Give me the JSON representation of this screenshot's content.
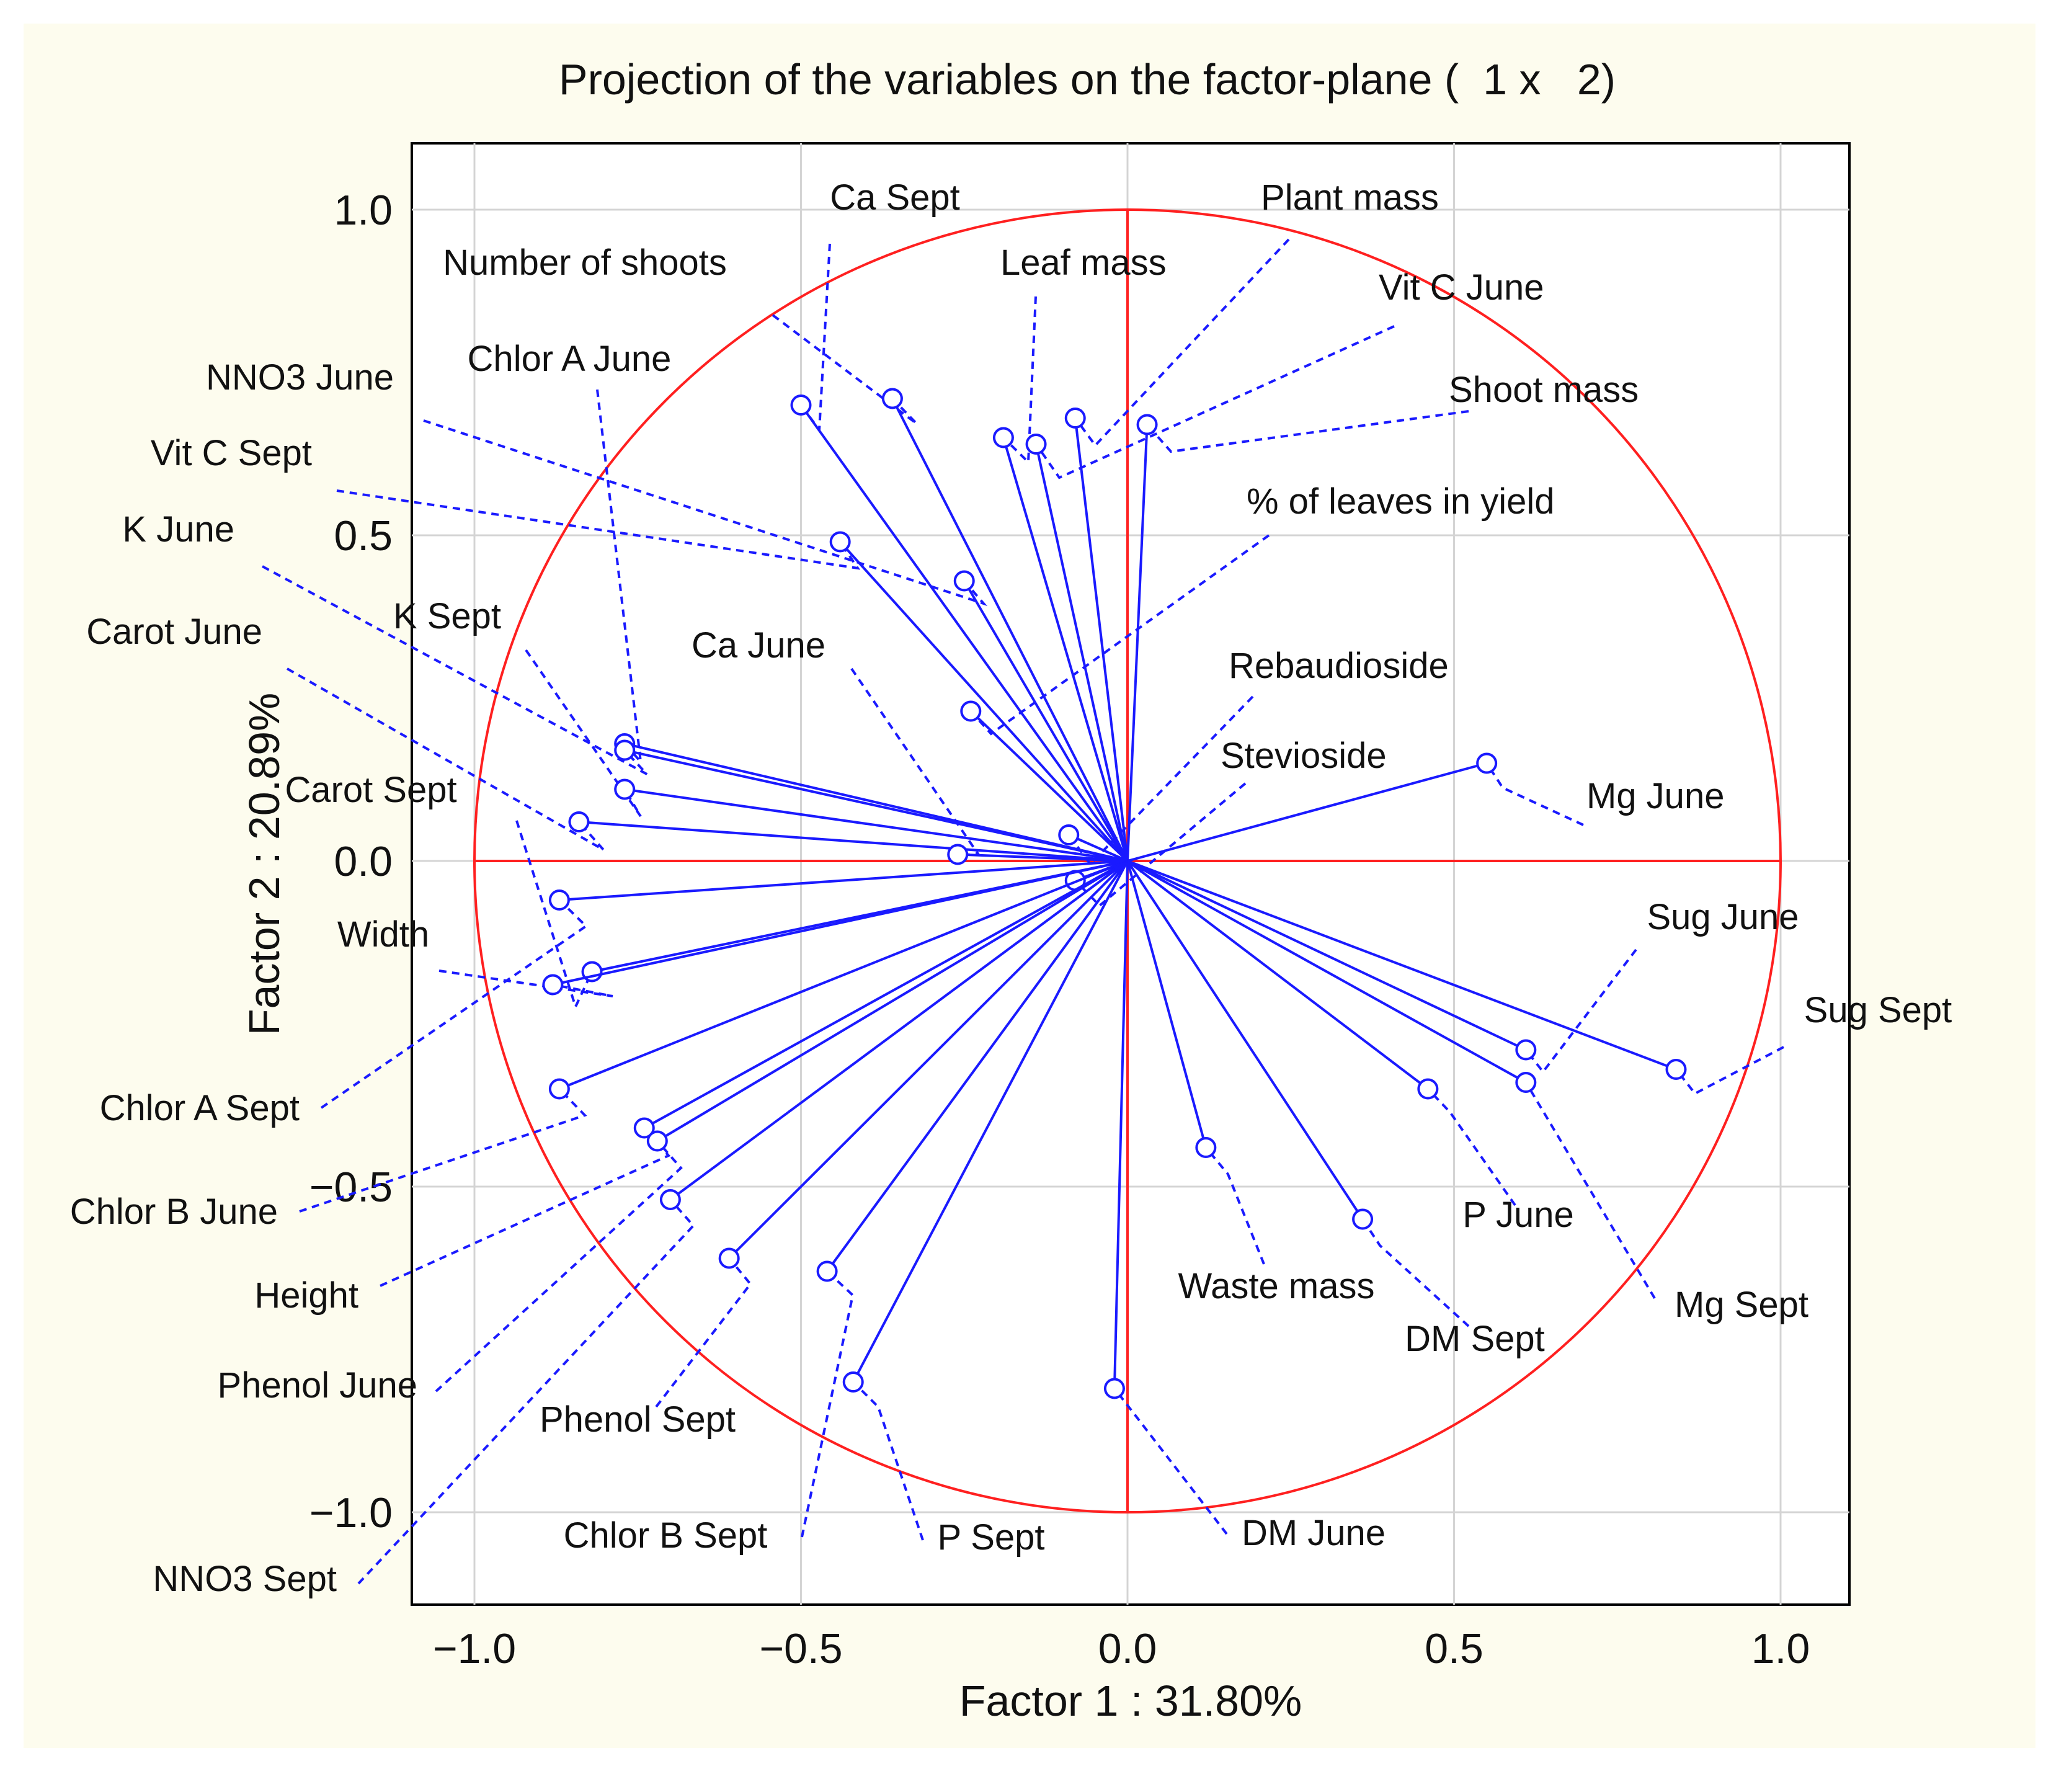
{
  "chart_data": {
    "type": "scatter",
    "title": "Projection of the variables on the factor-plane (  1 x   2)",
    "xlabel": "Factor 1 : 31.80%",
    "ylabel": "Factor 2 : 20.89%",
    "xlim": [
      -1.1,
      1.1
    ],
    "ylim": [
      -1.1,
      1.1
    ],
    "x_ticks": [
      -1.0,
      -0.5,
      0.0,
      0.5,
      1.0
    ],
    "y_ticks": [
      -1.0,
      -0.5,
      0.0,
      0.5,
      1.0
    ],
    "x_tick_labels": [
      "−1.0",
      "−0.5",
      "0.0",
      "0.5",
      "1.0"
    ],
    "y_tick_labels": [
      "−1.0",
      "−0.5",
      "0.0",
      "0.5",
      "1.0"
    ],
    "grid": true,
    "unit_circle": true,
    "colors": {
      "vectors": "#1a1aff",
      "circle": "#ff2020",
      "axes": "#ff2020",
      "grid": "#d4d4d4",
      "background": "#fdfcee"
    },
    "variables": [
      {
        "name": "Ca Sept",
        "x": -0.5,
        "y": 0.7
      },
      {
        "name": "Number of shoots",
        "x": -0.36,
        "y": 0.71
      },
      {
        "name": "Leaf mass",
        "x": -0.19,
        "y": 0.65
      },
      {
        "name": "Plant mass",
        "x": -0.08,
        "y": 0.68
      },
      {
        "name": "Vit C June",
        "x": -0.14,
        "y": 0.64
      },
      {
        "name": "Shoot mass",
        "x": 0.03,
        "y": 0.67
      },
      {
        "name": "NNO3 June",
        "x": -0.25,
        "y": 0.43
      },
      {
        "name": "Vit C Sept",
        "x": -0.44,
        "y": 0.49
      },
      {
        "name": "Chlor A June",
        "x": -0.77,
        "y": 0.18
      },
      {
        "name": "% of leaves in yield",
        "x": -0.24,
        "y": 0.23
      },
      {
        "name": "K June",
        "x": -0.77,
        "y": 0.17
      },
      {
        "name": "K Sept",
        "x": -0.77,
        "y": 0.11
      },
      {
        "name": "Carot June",
        "x": -0.84,
        "y": 0.06
      },
      {
        "name": "Ca June",
        "x": -0.26,
        "y": 0.01
      },
      {
        "name": "Rebaudioside",
        "x": -0.09,
        "y": 0.04
      },
      {
        "name": "Stevioside",
        "x": -0.08,
        "y": -0.03
      },
      {
        "name": "Mg June",
        "x": 0.55,
        "y": 0.15
      },
      {
        "name": "Carot Sept",
        "x": -0.82,
        "y": -0.17
      },
      {
        "name": "Width",
        "x": -0.88,
        "y": -0.19
      },
      {
        "name": "Chlor A Sept",
        "x": -0.87,
        "y": -0.06
      },
      {
        "name": "Chlor B June",
        "x": -0.87,
        "y": -0.35
      },
      {
        "name": "Height",
        "x": -0.74,
        "y": -0.41
      },
      {
        "name": "Phenol June",
        "x": -0.72,
        "y": -0.43
      },
      {
        "name": "NNO3 Sept",
        "x": -0.7,
        "y": -0.52
      },
      {
        "name": "Phenol Sept",
        "x": -0.61,
        "y": -0.61
      },
      {
        "name": "Chlor B Sept",
        "x": -0.46,
        "y": -0.63
      },
      {
        "name": "P Sept",
        "x": -0.42,
        "y": -0.8
      },
      {
        "name": "DM June",
        "x": -0.02,
        "y": -0.81
      },
      {
        "name": "Waste mass",
        "x": 0.12,
        "y": -0.44
      },
      {
        "name": "DM Sept",
        "x": 0.36,
        "y": -0.55
      },
      {
        "name": "P June",
        "x": 0.46,
        "y": -0.35
      },
      {
        "name": "Sug June",
        "x": 0.61,
        "y": -0.29
      },
      {
        "name": "Mg Sept",
        "x": 0.61,
        "y": -0.34
      },
      {
        "name": "Sug Sept",
        "x": 0.84,
        "y": -0.32
      }
    ]
  }
}
